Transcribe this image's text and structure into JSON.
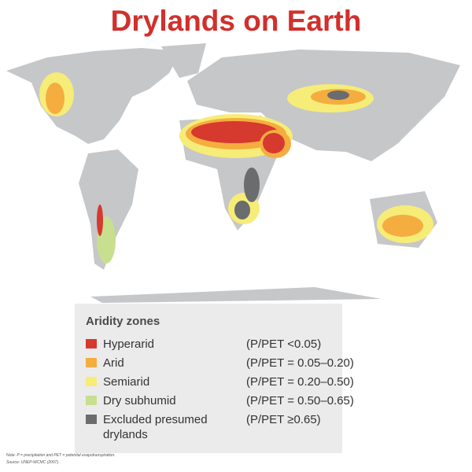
{
  "title": "Drylands on Earth",
  "legend": {
    "title": "Aridity zones",
    "items": [
      {
        "label": "Hyperarid",
        "range": "(P/PET <0.05)",
        "color": "#d6392e"
      },
      {
        "label": "Arid",
        "range": "(P/PET = 0.05–0.20)",
        "color": "#f5ad3f"
      },
      {
        "label": "Semiarid",
        "range": "(P/PET = 0.20–0.50)",
        "color": "#f6ec78"
      },
      {
        "label": "Dry subhumid",
        "range": "(P/PET = 0.50–0.65)",
        "color": "#c7df8e"
      },
      {
        "label": "Excluded presumed drylands",
        "range": "(P/PET ≥0.65)",
        "color": "#6b6c6e"
      }
    ]
  },
  "note": "Note: P = precipitation and PET = potential evapotranspiration.",
  "source": "Source: UNEP-WCMC (2007)"
}
